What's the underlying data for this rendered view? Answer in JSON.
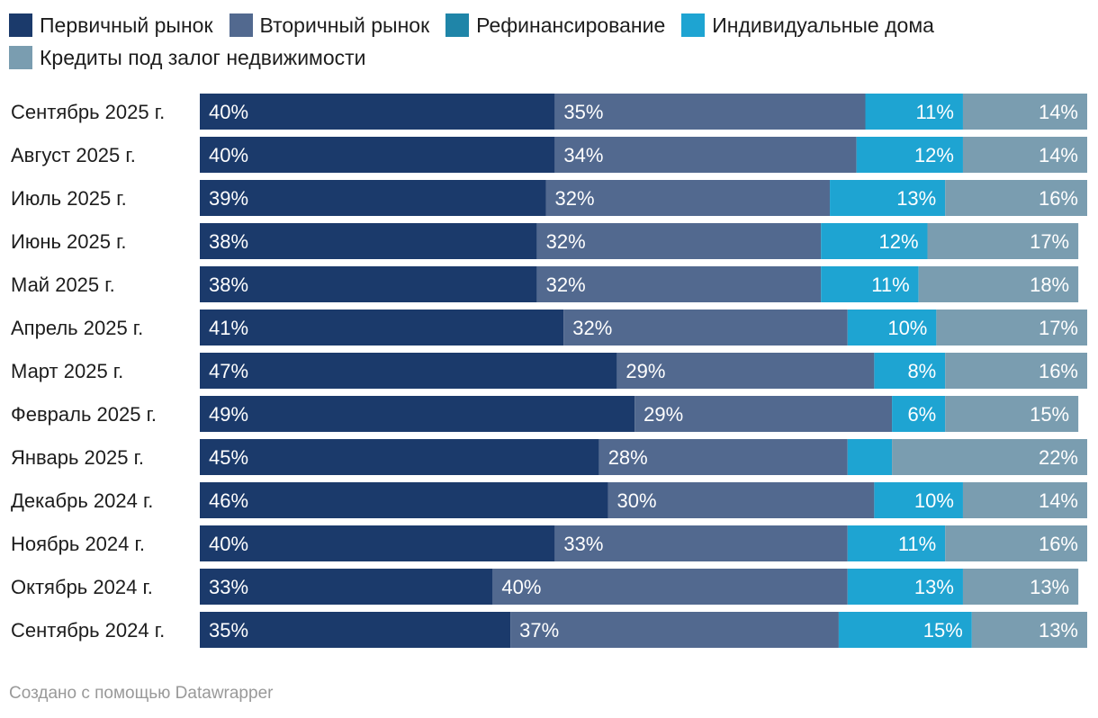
{
  "chart_data": {
    "type": "bar",
    "orientation": "horizontal",
    "stacked": true,
    "legend_position": "top-left",
    "series": [
      {
        "name": "Первичный рынок",
        "color": "#1b3a6b",
        "values": [
          40,
          40,
          39,
          38,
          38,
          41,
          47,
          49,
          45,
          46,
          40,
          33,
          35
        ],
        "labels": [
          "40%",
          "40%",
          "39%",
          "38%",
          "38%",
          "41%",
          "47%",
          "49%",
          "45%",
          "46%",
          "40%",
          "33%",
          "35%"
        ]
      },
      {
        "name": "Вторичный рынок",
        "color": "#52698f",
        "values": [
          35,
          34,
          32,
          32,
          32,
          32,
          29,
          29,
          28,
          30,
          33,
          40,
          37
        ],
        "labels": [
          "35%",
          "34%",
          "32%",
          "32%",
          "32%",
          "32%",
          "29%",
          "29%",
          "28%",
          "30%",
          "33%",
          "40%",
          "37%"
        ]
      },
      {
        "name": "Рефинансирование",
        "color": "#1f85a8",
        "values": [
          0,
          0,
          0,
          0,
          0,
          0,
          0,
          0,
          0,
          0,
          0,
          0,
          0
        ],
        "labels": [
          "",
          "",
          "",
          "",
          "",
          "",
          "",
          "",
          "",
          "",
          "",
          "",
          ""
        ]
      },
      {
        "name": "Индивидуальные дома",
        "color": "#1ea4d2",
        "values": [
          11,
          12,
          13,
          12,
          11,
          10,
          8,
          6,
          5,
          10,
          11,
          13,
          15
        ],
        "labels": [
          "11%",
          "12%",
          "13%",
          "12%",
          "11%",
          "10%",
          "8%",
          "6%",
          "",
          "10%",
          "11%",
          "13%",
          "15%"
        ]
      },
      {
        "name": "Кредиты под залог недвижимости",
        "color": "#7a9db0",
        "values": [
          14,
          14,
          16,
          17,
          18,
          17,
          16,
          15,
          22,
          14,
          16,
          13,
          13
        ],
        "labels": [
          "14%",
          "14%",
          "16%",
          "17%",
          "18%",
          "17%",
          "16%",
          "15%",
          "22%",
          "14%",
          "16%",
          "13%",
          "13%"
        ]
      }
    ],
    "categories": [
      "Сентябрь 2025 г.",
      "Август 2025 г.",
      "Июль 2025 г.",
      "Июнь 2025 г.",
      "Май 2025 г.",
      "Апрель 2025 г.",
      "Март 2025 г.",
      "Февраль 2025 г.",
      "Январь 2025 г.",
      "Декабрь 2024 г.",
      "Ноябрь 2024 г.",
      "Октябрь 2024 г.",
      "Сентябрь 2024 г."
    ],
    "xlim": [
      0,
      100
    ],
    "grid": false
  },
  "footer": {
    "text": "Создано с помощью Datawrapper"
  }
}
